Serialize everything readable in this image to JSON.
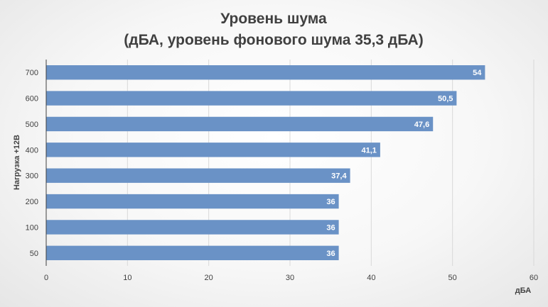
{
  "chart_data": {
    "type": "bar",
    "orientation": "horizontal",
    "title": "Уровень шума",
    "subtitle": "(дБА, уровень фонового шума 35,3 дБА)",
    "xlabel": "дБА",
    "ylabel": "Нагрузка +12В",
    "categories": [
      "700",
      "600",
      "500",
      "400",
      "300",
      "200",
      "100",
      "50"
    ],
    "values": [
      54,
      50.5,
      47.6,
      41.1,
      37.4,
      36,
      36,
      36
    ],
    "data_labels": [
      "54",
      "50,5",
      "47,6",
      "41,1",
      "37,4",
      "36",
      "36",
      "36"
    ],
    "xlim": [
      0,
      60
    ],
    "x_ticks": [
      "0",
      "10",
      "20",
      "30",
      "40",
      "50",
      "60"
    ],
    "grid": true,
    "bar_color": "#6a92c6",
    "legend": "none"
  }
}
